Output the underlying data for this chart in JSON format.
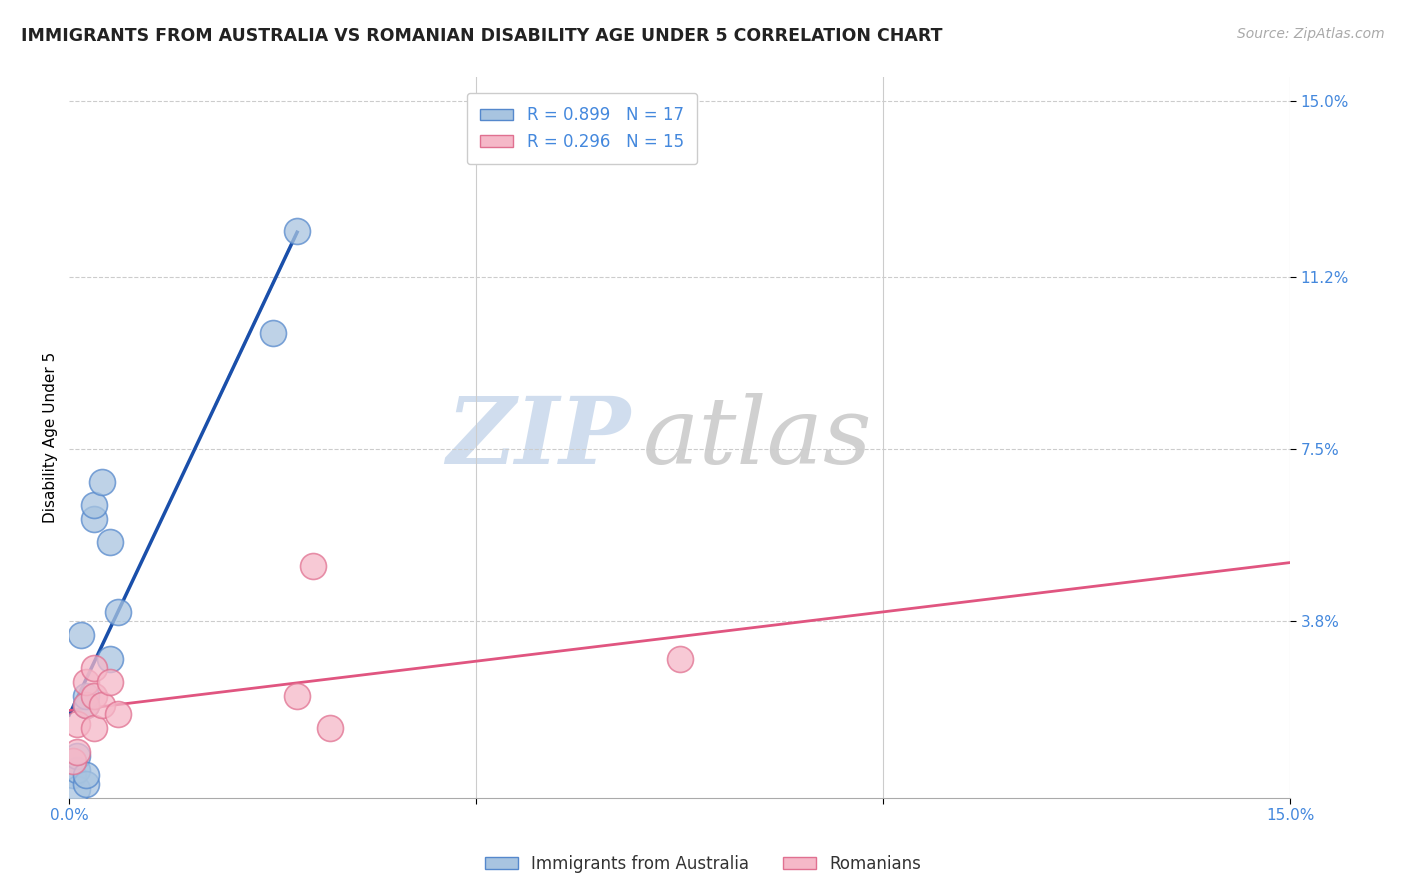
{
  "title": "IMMIGRANTS FROM AUSTRALIA VS ROMANIAN DISABILITY AGE UNDER 5 CORRELATION CHART",
  "source": "Source: ZipAtlas.com",
  "ylabel": "Disability Age Under 5",
  "xlim": [
    0.0,
    0.15
  ],
  "ylim": [
    0.0,
    0.155
  ],
  "aus_x": [
    0.0005,
    0.001,
    0.001,
    0.001,
    0.0015,
    0.002,
    0.002,
    0.002,
    0.002,
    0.003,
    0.003,
    0.004,
    0.005,
    0.005,
    0.006,
    0.025,
    0.028
  ],
  "aus_y": [
    0.005,
    0.002,
    0.006,
    0.009,
    0.035,
    0.003,
    0.005,
    0.02,
    0.022,
    0.06,
    0.063,
    0.068,
    0.055,
    0.03,
    0.04,
    0.1,
    0.122
  ],
  "rom_x": [
    0.0005,
    0.001,
    0.001,
    0.002,
    0.002,
    0.003,
    0.003,
    0.003,
    0.004,
    0.005,
    0.006,
    0.028,
    0.03,
    0.075,
    0.032
  ],
  "rom_y": [
    0.008,
    0.01,
    0.016,
    0.02,
    0.025,
    0.015,
    0.022,
    0.028,
    0.02,
    0.025,
    0.018,
    0.022,
    0.05,
    0.03,
    0.015
  ],
  "aus_color": "#a8c4e0",
  "aus_edge_color": "#5588cc",
  "rom_color": "#f5b8c8",
  "rom_edge_color": "#e07090",
  "aus_line_color": "#1a4faa",
  "rom_line_color": "#e05580",
  "trendline_aus_dashed_color": "#b0c8e8",
  "legend_R_aus": "R = 0.899",
  "legend_N_aus": "N = 17",
  "legend_R_rom": "R = 0.296",
  "legend_N_rom": "N = 15",
  "watermark_zip": "ZIP",
  "watermark_atlas": "atlas",
  "background_color": "#ffffff",
  "grid_color": "#cccccc",
  "axis_label_color": "#4488dd",
  "title_fontsize": 12.5,
  "label_fontsize": 11,
  "tick_fontsize": 11,
  "legend_fontsize": 12,
  "source_fontsize": 10
}
